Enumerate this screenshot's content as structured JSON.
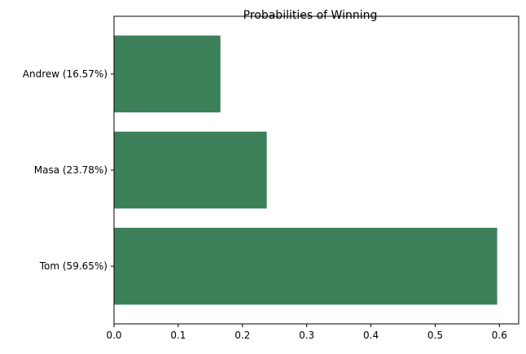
{
  "chart_data": {
    "type": "bar",
    "orientation": "horizontal",
    "title": "Probabilities of Winning",
    "xlabel": "",
    "ylabel": "",
    "categories": [
      "Tom (59.65%)",
      "Masa (23.78%)",
      "Andrew (16.57%)"
    ],
    "values": [
      0.5965,
      0.2378,
      0.1657
    ],
    "xlim": [
      0,
      0.63
    ],
    "xticks": [
      0.0,
      0.1,
      0.2,
      0.3,
      0.4,
      0.5,
      0.6
    ],
    "xtick_labels": [
      "0.0",
      "0.1",
      "0.2",
      "0.3",
      "0.4",
      "0.5",
      "0.6"
    ],
    "grid": false,
    "bar_color": "#3c8059"
  }
}
